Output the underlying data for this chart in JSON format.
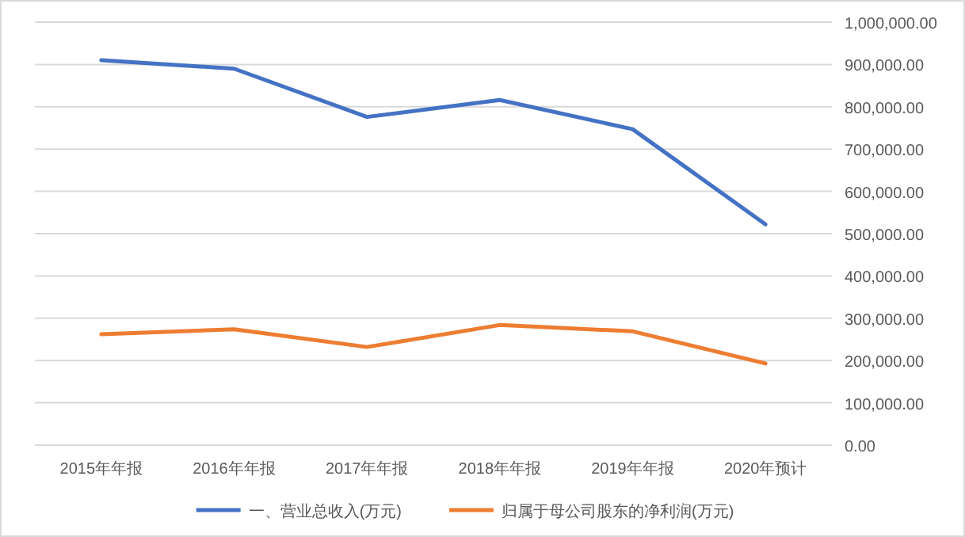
{
  "chart_data": {
    "type": "line",
    "categories": [
      "2015年年报",
      "2016年年报",
      "2017年年报",
      "2018年年报",
      "2019年年报",
      "2020年预计"
    ],
    "series": [
      {
        "name": "一、营业总收入(万元)",
        "color": "#4472c4",
        "values": [
          910000,
          890000,
          776000,
          816000,
          747000,
          522000
        ]
      },
      {
        "name": "归属于母公司股东的净利润(万元)",
        "color": "#ed7d31",
        "values": [
          262000,
          274000,
          232000,
          284000,
          269000,
          193000
        ]
      }
    ],
    "ylim": [
      0,
      1000000
    ],
    "yticks": [
      {
        "value": 0,
        "label": "0.00"
      },
      {
        "value": 100000,
        "label": "100,000.00"
      },
      {
        "value": 200000,
        "label": "200,000.00"
      },
      {
        "value": 300000,
        "label": "300,000.00"
      },
      {
        "value": 400000,
        "label": "400,000.00"
      },
      {
        "value": 500000,
        "label": "500,000.00"
      },
      {
        "value": 600000,
        "label": "600,000.00"
      },
      {
        "value": 700000,
        "label": "700,000.00"
      },
      {
        "value": 800000,
        "label": "800,000.00"
      },
      {
        "value": 900000,
        "label": "900,000.00"
      },
      {
        "value": 1000000,
        "label": "1,000,000.00"
      }
    ],
    "grid": "y",
    "legend": "bottom"
  }
}
